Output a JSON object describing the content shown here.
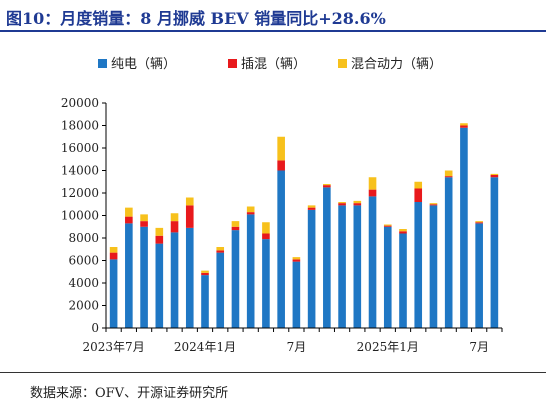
{
  "title": "图10：月度销量：8 月挪威 BEV 销量同比+28.6%",
  "source": "数据来源：OFV、开源证券研究所",
  "colors": {
    "title": "#1f3a93",
    "bev": "#1f77c4",
    "phev": "#e8191c",
    "hev": "#f7c11c"
  },
  "chart_data": {
    "type": "bar",
    "stacked": true,
    "legend_position": "top",
    "grid": false,
    "ylim": [
      0,
      20000
    ],
    "yticks": [
      0,
      2000,
      4000,
      6000,
      8000,
      10000,
      12000,
      14000,
      16000,
      18000,
      20000
    ],
    "xlabel": "",
    "ylabel": "",
    "categories": [
      "2023-07",
      "2023-08",
      "2023-09",
      "2023-10",
      "2023-11",
      "2023-12",
      "2024-01",
      "2024-02",
      "2024-03",
      "2024-04",
      "2024-05",
      "2024-06",
      "2024-07",
      "2024-08",
      "2024-09",
      "2024-10",
      "2024-11",
      "2024-12",
      "2025-01",
      "2025-02",
      "2025-03",
      "2025-04",
      "2025-05",
      "2025-06",
      "2025-07",
      "2025-08"
    ],
    "xtick_labels": [
      {
        "index": 0,
        "label": "2023年7月"
      },
      {
        "index": 6,
        "label": "2024年1月"
      },
      {
        "index": 12,
        "label": "7月"
      },
      {
        "index": 18,
        "label": "2025年1月"
      },
      {
        "index": 24,
        "label": "7月"
      }
    ],
    "series": [
      {
        "name": "纯电（辆）",
        "color": "#1f77c4",
        "values": [
          6100,
          9300,
          9000,
          7500,
          8500,
          8900,
          4700,
          6700,
          8700,
          10100,
          7900,
          14000,
          5900,
          10500,
          12500,
          10900,
          10900,
          11700,
          9000,
          8400,
          11200,
          10900,
          13400,
          17800,
          9300,
          13400
        ]
      },
      {
        "name": "插混（辆）",
        "color": "#e8191c",
        "values": [
          600,
          600,
          500,
          700,
          1000,
          2000,
          200,
          200,
          300,
          200,
          500,
          900,
          200,
          200,
          200,
          200,
          200,
          600,
          100,
          200,
          1200,
          100,
          100,
          200,
          100,
          200
        ]
      },
      {
        "name": "混合动力（辆）",
        "color": "#f7c11c",
        "values": [
          500,
          800,
          600,
          700,
          700,
          700,
          200,
          300,
          500,
          500,
          1000,
          2100,
          200,
          200,
          100,
          100,
          200,
          1100,
          100,
          200,
          600,
          100,
          500,
          200,
          100,
          100
        ]
      }
    ]
  }
}
